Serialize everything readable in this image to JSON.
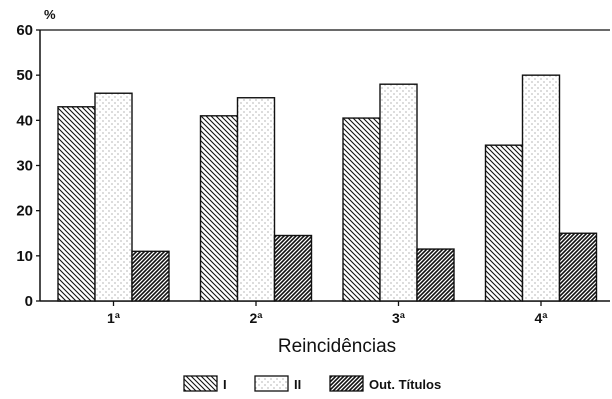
{
  "chart_data": {
    "type": "bar",
    "title": "",
    "xlabel": "Reincidências",
    "ylabel": "%",
    "ylim": [
      0,
      60
    ],
    "yticks": [
      0,
      10,
      20,
      30,
      40,
      50,
      60
    ],
    "categories": [
      "1ª",
      "2ª",
      "3ª",
      "4ª"
    ],
    "series": [
      {
        "name": "I",
        "values": [
          43,
          41,
          40.5,
          34.5
        ]
      },
      {
        "name": "II",
        "values": [
          46,
          45,
          48,
          50
        ]
      },
      {
        "name": "Out. Títulos",
        "values": [
          11,
          14.5,
          11.5,
          15
        ]
      }
    ],
    "grid": false,
    "legend_position": "bottom"
  }
}
